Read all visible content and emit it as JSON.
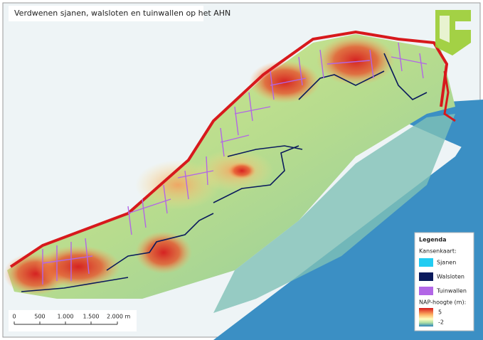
{
  "header": {
    "title": "Verdwenen sjanen, walsloten en tuinwallen op het AHN"
  },
  "scale_bar": {
    "labels": [
      "0",
      "500",
      "1.000",
      "1.500",
      "2.000 m"
    ]
  },
  "legend": {
    "title": "Legenda",
    "section": "Kansenkaart:",
    "items": [
      {
        "label": "Sjanen",
        "color": "#22ccf2"
      },
      {
        "label": "Walsloten",
        "color": "#0a1a5c"
      },
      {
        "label": "Tuinwallen",
        "color": "#b266e6"
      }
    ],
    "elevation_title": "NAP-hoogte (m):",
    "elevation_max": "5",
    "elevation_min": "-2"
  }
}
